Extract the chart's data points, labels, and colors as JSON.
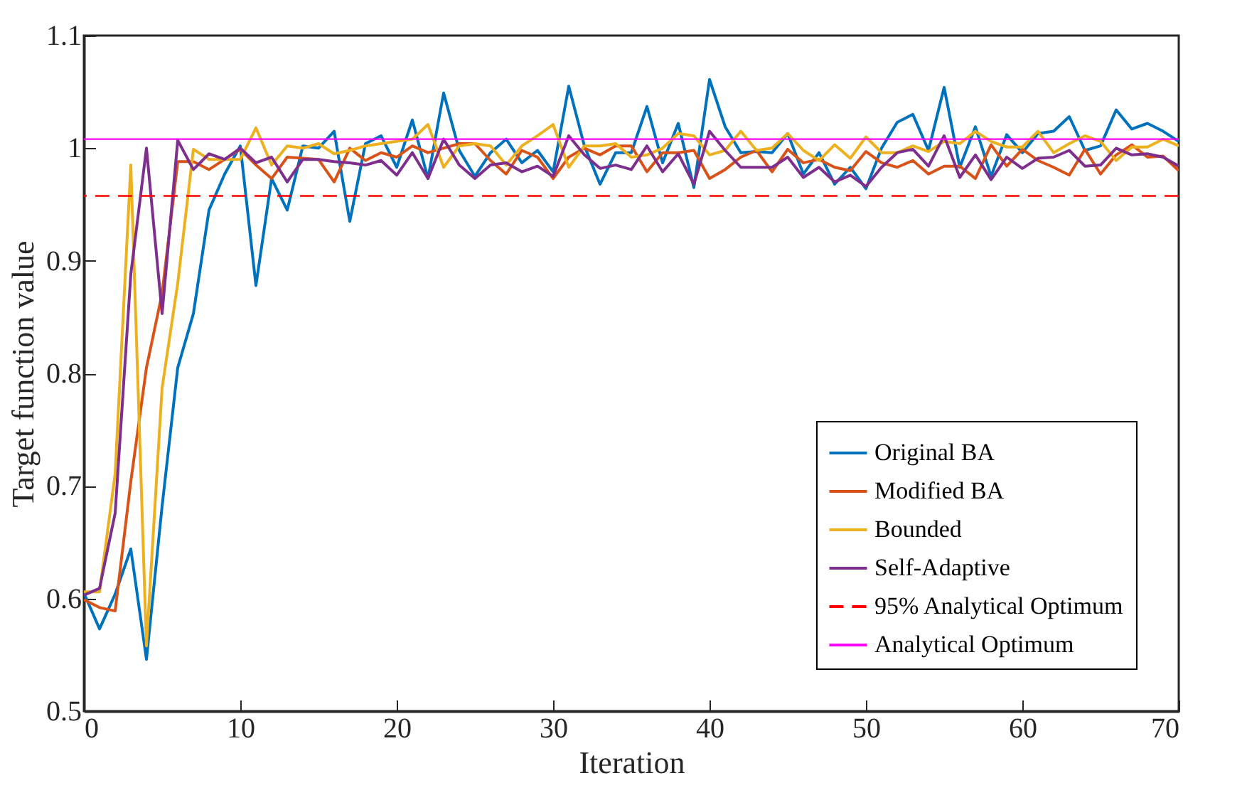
{
  "chart_data": {
    "type": "line",
    "xlabel": "Iteration",
    "ylabel": "Target function value",
    "x": [
      0,
      1,
      2,
      3,
      4,
      5,
      6,
      7,
      8,
      9,
      10,
      11,
      12,
      13,
      14,
      15,
      16,
      17,
      18,
      19,
      20,
      21,
      22,
      23,
      24,
      25,
      26,
      27,
      28,
      29,
      30,
      31,
      32,
      33,
      34,
      35,
      36,
      37,
      38,
      39,
      40,
      41,
      42,
      43,
      44,
      45,
      46,
      47,
      48,
      49,
      50,
      51,
      52,
      53,
      54,
      55,
      56,
      57,
      58,
      59,
      60,
      61,
      62,
      63,
      64,
      65,
      66,
      67,
      68,
      69,
      70
    ],
    "series": [
      {
        "name": "Original BA",
        "color": "#0072bd",
        "values": [
          0.605,
          0.573,
          0.604,
          0.644,
          0.546,
          0.682,
          0.805,
          0.853,
          0.945,
          0.977,
          1.002,
          0.878,
          0.973,
          0.945,
          1.002,
          1.0,
          1.015,
          0.935,
          1.004,
          1.011,
          0.983,
          1.025,
          0.973,
          1.049,
          0.998,
          0.975,
          0.996,
          1.008,
          0.987,
          0.998,
          0.979,
          1.055,
          1.002,
          0.968,
          0.996,
          0.996,
          1.037,
          0.987,
          1.022,
          0.965,
          1.061,
          1.019,
          0.996,
          0.997,
          0.996,
          1.013,
          0.977,
          0.996,
          0.968,
          0.983,
          0.964,
          1.0,
          1.023,
          1.03,
          0.998,
          1.054,
          0.983,
          1.019,
          0.975,
          1.012,
          0.996,
          1.013,
          1.015,
          1.028,
          0.998,
          1.002,
          1.034,
          1.017,
          1.022,
          1.015,
          1.006
        ]
      },
      {
        "name": "Modified BA",
        "color": "#d95319",
        "values": [
          0.599,
          0.592,
          0.589,
          0.704,
          0.805,
          0.871,
          0.988,
          0.988,
          0.981,
          0.99,
          0.999,
          0.985,
          0.973,
          0.992,
          0.991,
          0.99,
          0.97,
          1.0,
          0.989,
          0.996,
          0.992,
          1.002,
          0.996,
          1.0,
          1.004,
          1.004,
          0.989,
          0.977,
          0.998,
          0.992,
          0.973,
          0.992,
          1.0,
          0.994,
          1.002,
          1.002,
          0.979,
          0.996,
          0.996,
          0.998,
          0.973,
          0.981,
          0.992,
          0.998,
          0.979,
          0.999,
          0.987,
          0.99,
          0.983,
          0.98,
          0.997,
          0.987,
          0.983,
          0.989,
          0.977,
          0.984,
          0.984,
          0.973,
          1.003,
          0.984,
          0.999,
          0.989,
          0.983,
          0.976,
          0.999,
          0.977,
          0.994,
          1.003,
          0.992,
          0.993,
          0.98
        ]
      },
      {
        "name": "Bounded",
        "color": "#edb120",
        "values": [
          0.606,
          0.606,
          0.711,
          0.985,
          0.558,
          0.787,
          0.88,
          0.999,
          0.99,
          0.99,
          0.99,
          1.018,
          0.985,
          1.002,
          1.0,
          1.004,
          0.995,
          0.998,
          1.002,
          1.004,
          1.006,
          1.008,
          1.021,
          0.983,
          1.002,
          1.004,
          1.002,
          0.985,
          1.002,
          1.011,
          1.021,
          0.983,
          1.002,
          1.002,
          1.004,
          0.992,
          0.994,
          1.0,
          1.013,
          1.011,
          0.994,
          0.998,
          1.015,
          0.998,
          1.0,
          1.013,
          0.998,
          0.989,
          1.003,
          0.991,
          1.01,
          0.996,
          0.996,
          1.002,
          0.997,
          1.006,
          1.004,
          1.015,
          1.006,
          1.001,
          1.001,
          1.015,
          0.996,
          1.004,
          1.011,
          1.006,
          0.989,
          1.001,
          1.001,
          1.008,
          1.002
        ]
      },
      {
        "name": "Self-Adaptive",
        "color": "#7e2f8e",
        "values": [
          0.603,
          0.609,
          0.676,
          0.888,
          1.0,
          0.853,
          1.007,
          0.981,
          0.995,
          0.99,
          1.0,
          0.987,
          0.992,
          0.97,
          0.99,
          0.99,
          0.988,
          0.987,
          0.985,
          0.989,
          0.976,
          0.996,
          0.973,
          1.008,
          0.985,
          0.973,
          0.985,
          0.987,
          0.979,
          0.984,
          0.975,
          1.011,
          0.994,
          0.982,
          0.985,
          0.981,
          1.002,
          0.979,
          0.995,
          0.968,
          1.015,
          0.998,
          0.983,
          0.983,
          0.983,
          0.992,
          0.974,
          0.983,
          0.97,
          0.976,
          0.966,
          0.983,
          0.996,
          0.999,
          0.984,
          1.011,
          0.974,
          0.994,
          0.972,
          0.992,
          0.982,
          0.991,
          0.992,
          0.998,
          0.984,
          0.985,
          1.0,
          0.994,
          0.995,
          0.992,
          0.984
        ]
      }
    ],
    "ref_lines": [
      {
        "axis": "y",
        "value": 0.9576,
        "label": "95% Analytical Optimum",
        "color": "#ff0000",
        "line_style": "dashed"
      },
      {
        "axis": "y",
        "value": 1.008,
        "label": "Analytical Optimum",
        "color": "#ff00ff",
        "line_style": "solid"
      }
    ],
    "xlim": [
      0,
      70
    ],
    "xticks": [
      0,
      10,
      20,
      30,
      40,
      50,
      60,
      70
    ],
    "ylim": [
      0.5,
      1.1
    ],
    "yticks": [
      0.5,
      0.6,
      0.7,
      0.8,
      0.9,
      1,
      1.1
    ],
    "legend": "bottom right",
    "grid": false,
    "line_style": "solid",
    "marker": "none"
  }
}
